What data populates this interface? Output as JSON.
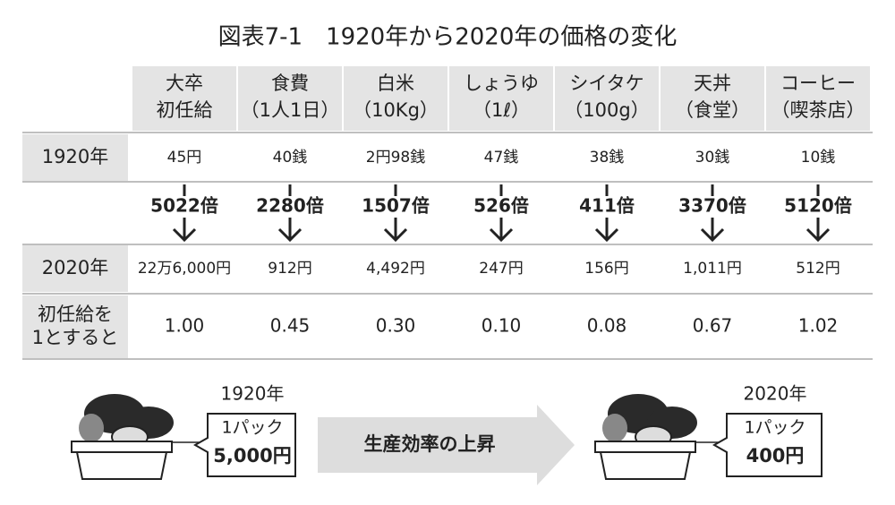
{
  "title": "図表7-1　1920年から2020年の価格の変化",
  "table": {
    "headers": [
      [
        "大卒",
        "初任給"
      ],
      [
        "食費",
        "（1人1日）"
      ],
      [
        "白米",
        "（10Kg）"
      ],
      [
        "しょうゆ",
        "（1ℓ）"
      ],
      [
        "シイタケ",
        "（100g）"
      ],
      [
        "天丼",
        "（食堂）"
      ],
      [
        "コーヒー",
        "（喫茶店）"
      ]
    ],
    "rows": [
      {
        "label": [
          "1920年"
        ],
        "cells": [
          "45円",
          "40銭",
          "2円98銭",
          "47銭",
          "38銭",
          "30銭",
          "10銭"
        ]
      },
      {
        "cells": [
          "5022倍",
          "2280倍",
          "1507倍",
          "526倍",
          "411倍",
          "3370倍",
          "5120倍"
        ]
      },
      {
        "label": [
          "2020年"
        ],
        "cells": [
          "22万6,000円",
          "912円",
          "4,492円",
          "247円",
          "156円",
          "1,011円",
          "512円"
        ]
      },
      {
        "label": [
          "初任給を",
          "1とすると"
        ],
        "cells": [
          "1.00",
          "0.45",
          "0.30",
          "0.10",
          "0.08",
          "0.67",
          "1.02"
        ]
      }
    ]
  },
  "illustration": {
    "before": {
      "year": "1920年",
      "unit": "1パック",
      "price": "5,000円"
    },
    "arrow": "生産効率の上昇",
    "after": {
      "year": "2020年",
      "unit": "1パック",
      "price": "400円"
    }
  }
}
